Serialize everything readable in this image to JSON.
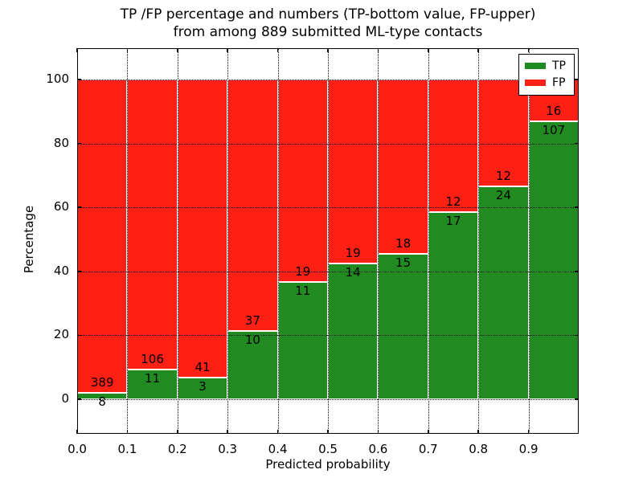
{
  "title": {
    "line1": "TP /FP percentage and numbers (TP-bottom value, FP-upper)",
    "line2": "from among 889 submitted ML-type contacts"
  },
  "chart_data": {
    "type": "bar",
    "stacked": true,
    "normalized": "percent",
    "title": "TP /FP percentage and numbers (TP-bottom value, FP-upper) from among 889 submitted ML-type contacts",
    "xlabel": "Predicted probability",
    "ylabel": "Percentage",
    "total_contacts": 889,
    "categories": [
      "0.0-0.1",
      "0.1-0.2",
      "0.2-0.3",
      "0.3-0.4",
      "0.4-0.5",
      "0.5-0.6",
      "0.6-0.7",
      "0.7-0.8",
      "0.8-0.9",
      "0.9-1.0"
    ],
    "bin_edges": [
      0.0,
      0.1,
      0.2,
      0.3,
      0.4,
      0.5,
      0.6,
      0.7,
      0.8,
      0.9,
      1.0
    ],
    "series": [
      {
        "name": "TP",
        "color": "#218a21",
        "values": [
          8,
          11,
          3,
          10,
          11,
          14,
          15,
          17,
          24,
          107
        ]
      },
      {
        "name": "FP",
        "color": "#ff2015",
        "values": [
          389,
          106,
          41,
          37,
          19,
          19,
          18,
          12,
          12,
          16
        ]
      }
    ],
    "tp_percentages": [
      2.0,
      9.4,
      6.8,
      21.3,
      36.7,
      42.4,
      45.5,
      58.6,
      66.7,
      87.0
    ],
    "xticks": [
      "0.0",
      "0.1",
      "0.2",
      "0.3",
      "0.4",
      "0.5",
      "0.6",
      "0.7",
      "0.8",
      "0.9"
    ],
    "yticks": [
      0,
      20,
      40,
      60,
      80,
      100
    ],
    "xlim": [
      0.0,
      1.0
    ],
    "ylim": [
      -11,
      110
    ],
    "grid": "dotted",
    "grid_color": "#000000",
    "bar_edge_color": "#ffffff",
    "legend": {
      "position": "upper right",
      "entries": [
        {
          "label": "TP",
          "color": "#218a21"
        },
        {
          "label": "FP",
          "color": "#ff2015"
        }
      ]
    }
  }
}
